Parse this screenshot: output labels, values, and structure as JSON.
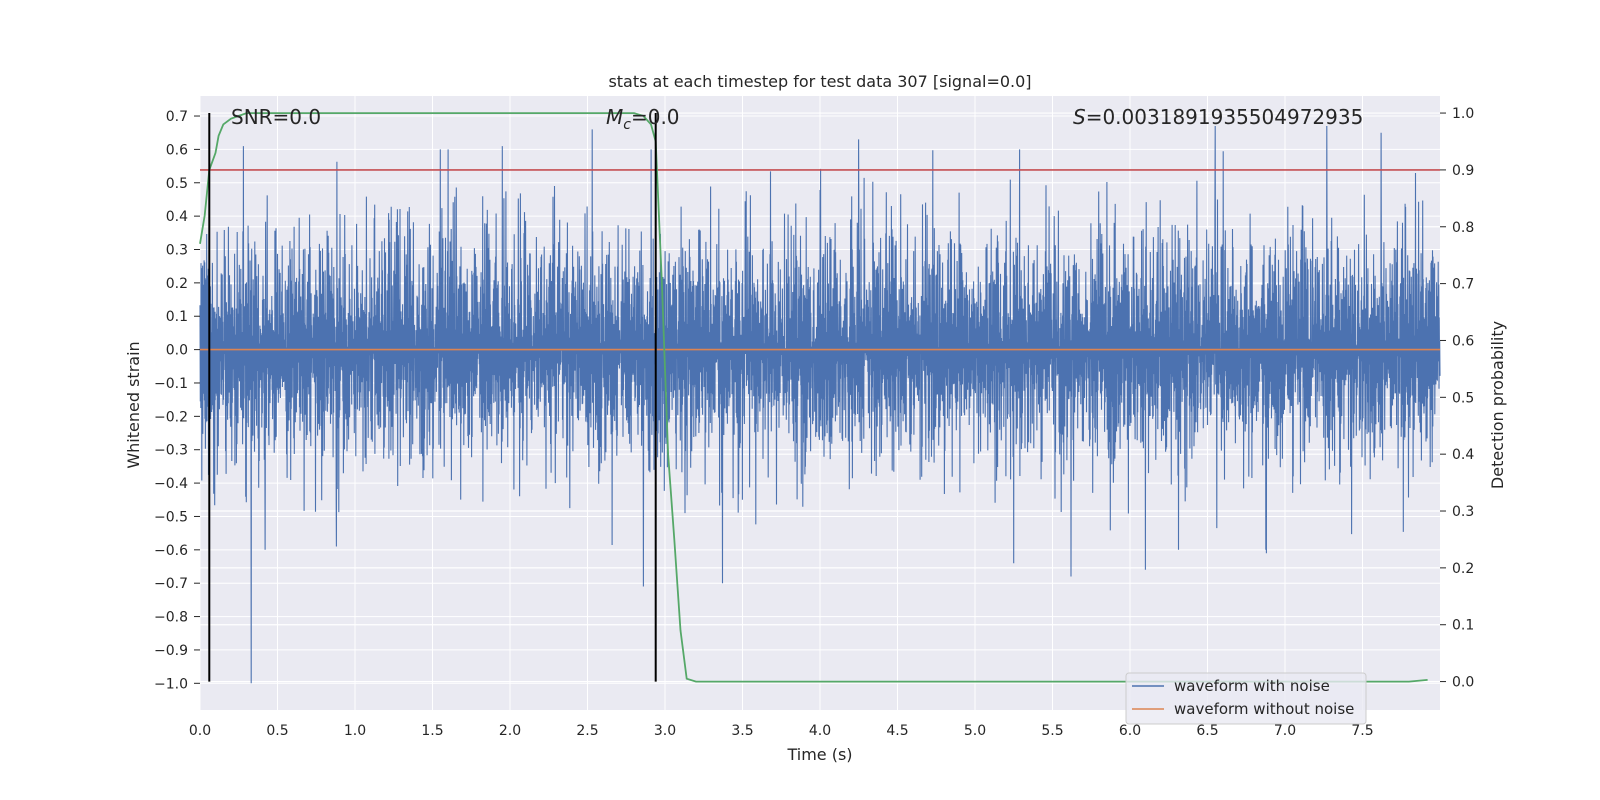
{
  "chart_data": {
    "type": "line",
    "title": "stats at each timestep for test data 307 [signal=0.0]",
    "xlabel": "Time (s)",
    "ylabel": "Whitened strain",
    "y2label": "Detection probability",
    "xlim": [
      0.0,
      8.0
    ],
    "ylim": [
      -1.08,
      0.76
    ],
    "y2lim": [
      -0.05,
      1.03
    ],
    "x_ticks": [
      0.0,
      0.5,
      1.0,
      1.5,
      2.0,
      2.5,
      3.0,
      3.5,
      4.0,
      4.5,
      5.0,
      5.5,
      6.0,
      6.5,
      7.0,
      7.5
    ],
    "x_tick_labels": [
      "0.0",
      "0.5",
      "1.0",
      "1.5",
      "2.0",
      "2.5",
      "3.0",
      "3.5",
      "4.0",
      "4.5",
      "5.0",
      "5.5",
      "6.0",
      "6.5",
      "7.0",
      "7.5"
    ],
    "y_ticks": [
      0.7,
      0.6,
      0.5,
      0.4,
      0.3,
      0.2,
      0.1,
      0.0,
      -0.1,
      -0.2,
      -0.3,
      -0.4,
      -0.5,
      -0.6,
      -0.7,
      -0.8,
      -0.9,
      -1.0
    ],
    "y_tick_labels": [
      "0.7",
      "0.6",
      "0.5",
      "0.4",
      "0.3",
      "0.2",
      "0.1",
      "0.0",
      "−0.1",
      "−0.2",
      "−0.3",
      "−0.4",
      "−0.5",
      "−0.6",
      "−0.7",
      "−0.8",
      "−0.9",
      "−1.0"
    ],
    "y2_ticks": [
      1.0,
      0.9,
      0.8,
      0.7,
      0.6,
      0.5,
      0.4,
      0.3,
      0.2,
      0.1,
      0.0
    ],
    "y2_tick_labels": [
      "1.0",
      "0.9",
      "0.8",
      "0.7",
      "0.6",
      "0.5",
      "0.4",
      "0.3",
      "0.2",
      "0.1",
      "0.0"
    ],
    "annotations": {
      "snr": "SNR=0.0",
      "mc_symbol": "M",
      "mc_sub": "c",
      "mc_value": "=0.0",
      "s_symbol": "S",
      "s_value": "=0.0031891935504972935"
    },
    "vertical_lines": [
      0.06,
      2.94
    ],
    "threshold_line_prob": 0.9,
    "grid": true,
    "legend_position": "lower-right",
    "series": [
      {
        "name": "waveform with noise",
        "color": "#4c72b0",
        "x_range": [
          0.0,
          8.0
        ],
        "typical_amplitude": 0.2,
        "peak_values": [
          {
            "x": 0.33,
            "y": -1.0
          },
          {
            "x": 0.28,
            "y": 0.61
          },
          {
            "x": 0.42,
            "y": -0.6
          },
          {
            "x": 0.88,
            "y": -0.59
          },
          {
            "x": 1.55,
            "y": 0.6
          },
          {
            "x": 1.95,
            "y": 0.61
          },
          {
            "x": 2.53,
            "y": 0.66
          },
          {
            "x": 2.86,
            "y": -0.71
          },
          {
            "x": 2.91,
            "y": 0.6
          },
          {
            "x": 3.37,
            "y": -0.7
          },
          {
            "x": 4.25,
            "y": 0.63
          },
          {
            "x": 5.25,
            "y": -0.64
          },
          {
            "x": 5.62,
            "y": -0.68
          },
          {
            "x": 6.1,
            "y": -0.66
          },
          {
            "x": 6.55,
            "y": 0.67
          },
          {
            "x": 6.88,
            "y": -0.61
          },
          {
            "x": 7.27,
            "y": 0.67
          },
          {
            "x": 7.62,
            "y": 0.65
          }
        ]
      },
      {
        "name": "waveform without noise",
        "color": "#dd8452",
        "x": [
          0.0,
          8.0
        ],
        "y": [
          0.0,
          0.0
        ]
      },
      {
        "name": "",
        "axis": "right",
        "color": "#55a868",
        "x": [
          0.0,
          0.03,
          0.06,
          0.1,
          0.12,
          0.15,
          0.2,
          0.25,
          0.3,
          0.4,
          0.5,
          1.0,
          2.0,
          2.6,
          2.7,
          2.8,
          2.86,
          2.91,
          2.94,
          2.98,
          3.02,
          3.06,
          3.1,
          3.14,
          3.2,
          4.0,
          5.0,
          6.0,
          7.0,
          7.8,
          7.92
        ],
        "y": [
          0.77,
          0.82,
          0.9,
          0.93,
          0.96,
          0.98,
          0.99,
          0.995,
          1.0,
          1.0,
          1.0,
          1.0,
          1.0,
          1.0,
          1.0,
          1.0,
          0.995,
          0.98,
          0.95,
          0.7,
          0.4,
          0.25,
          0.09,
          0.005,
          0.0,
          0.0,
          0.0,
          0.0,
          0.0,
          0.0,
          0.003
        ]
      },
      {
        "name": "",
        "axis": "right",
        "color": "#c44e52",
        "x": [
          0.0,
          8.0
        ],
        "y": [
          0.9,
          0.9
        ]
      }
    ]
  }
}
